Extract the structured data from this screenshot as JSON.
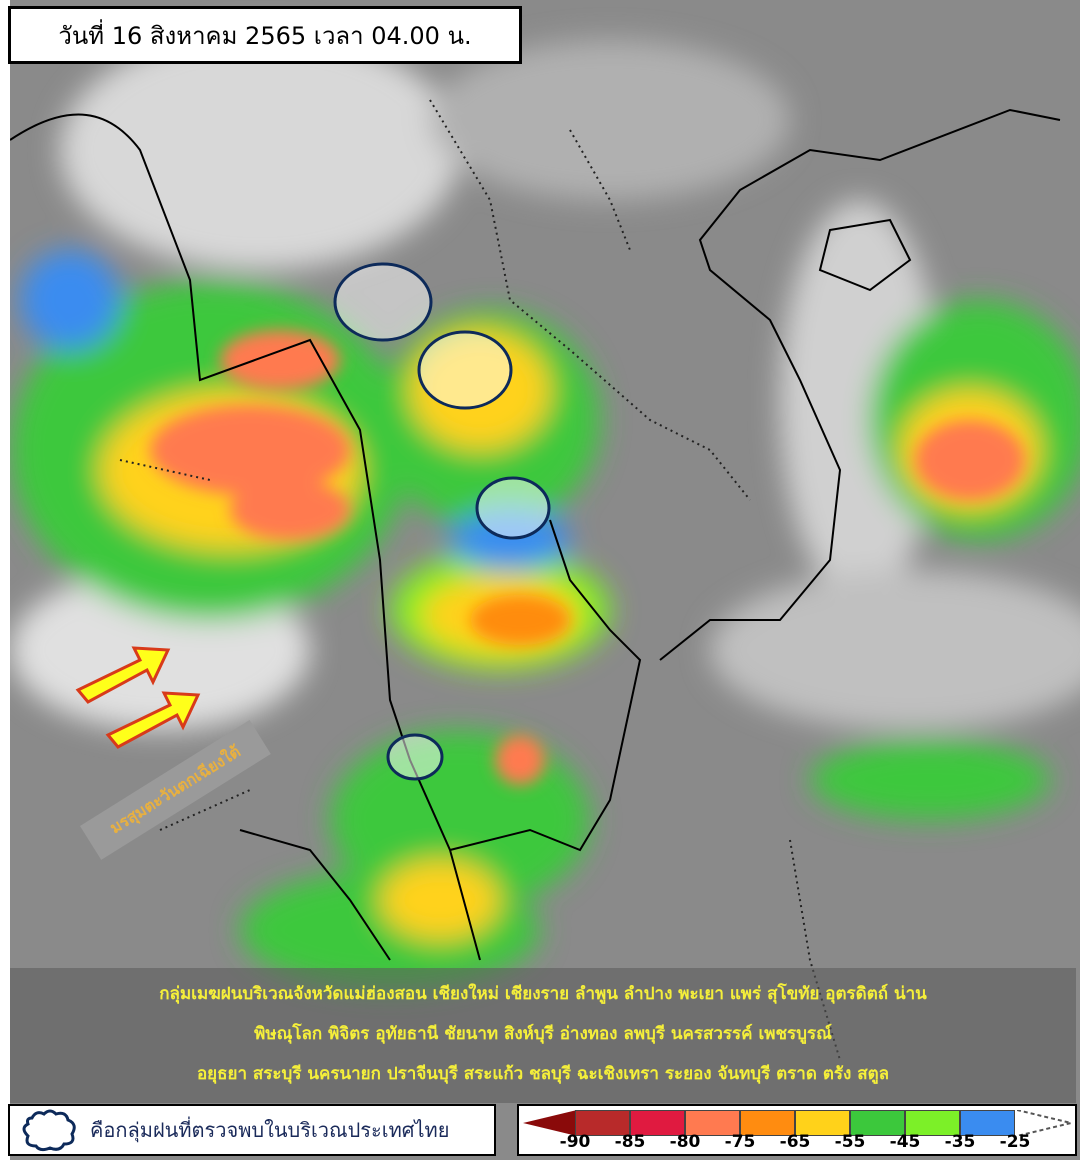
{
  "title": "วันที่ 16 สิงหาคม 2565 เวลา 04.00 น.",
  "monsoon_label": "มรสุมตะวันตกเฉียงใต้",
  "provinces_lines": [
    "กลุ่มเมฆฝนบริเวณจังหวัดแม่ฮ่องสอน เชียงใหม่ เชียงราย ลำพูน ลำปาง พะเยา แพร่ สุโขทัย อุตรดิตถ์ น่าน",
    "พิษณุโลก พิจิตร อุทัยธานี ชัยนาท สิงห์บุรี อ่างทอง ลพบุรี นครสวรรค์ เพชรบูรณ์",
    "อยุธยา สระบุรี นครนายก ปราจีนบุรี สระแก้ว ชลบุรี ฉะเชิงเทรา ระยอง จันทบุรี ตราด ตรัง สตูล"
  ],
  "legend": {
    "cloud_icon": "rain-cloud-outline-icon",
    "cloud_text": "คือกลุ่มฝนที่ตรวจพบในบริเวณประเทศไทย"
  },
  "color_scale": {
    "labels": [
      "-90",
      "-85",
      "-80",
      "-75",
      "-65",
      "-55",
      "-45",
      "-35",
      "-25"
    ],
    "colors": [
      "#a01818",
      "#b82a2a",
      "#e01a40",
      "#ff7a50",
      "#ff8c10",
      "#ffd21a",
      "#3cc83c",
      "#7cf028",
      "#3a8cf0"
    ]
  }
}
